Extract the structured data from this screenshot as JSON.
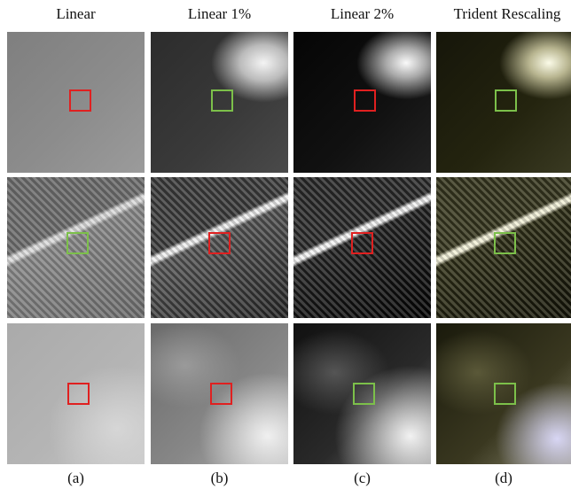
{
  "columns": [
    {
      "title": "Linear",
      "caption": "(a)"
    },
    {
      "title": "Linear 1%",
      "caption": "(b)"
    },
    {
      "title": "Linear 2%",
      "caption": "(c)"
    },
    {
      "title": "Trident Rescaling",
      "caption": "(d)"
    }
  ]
}
